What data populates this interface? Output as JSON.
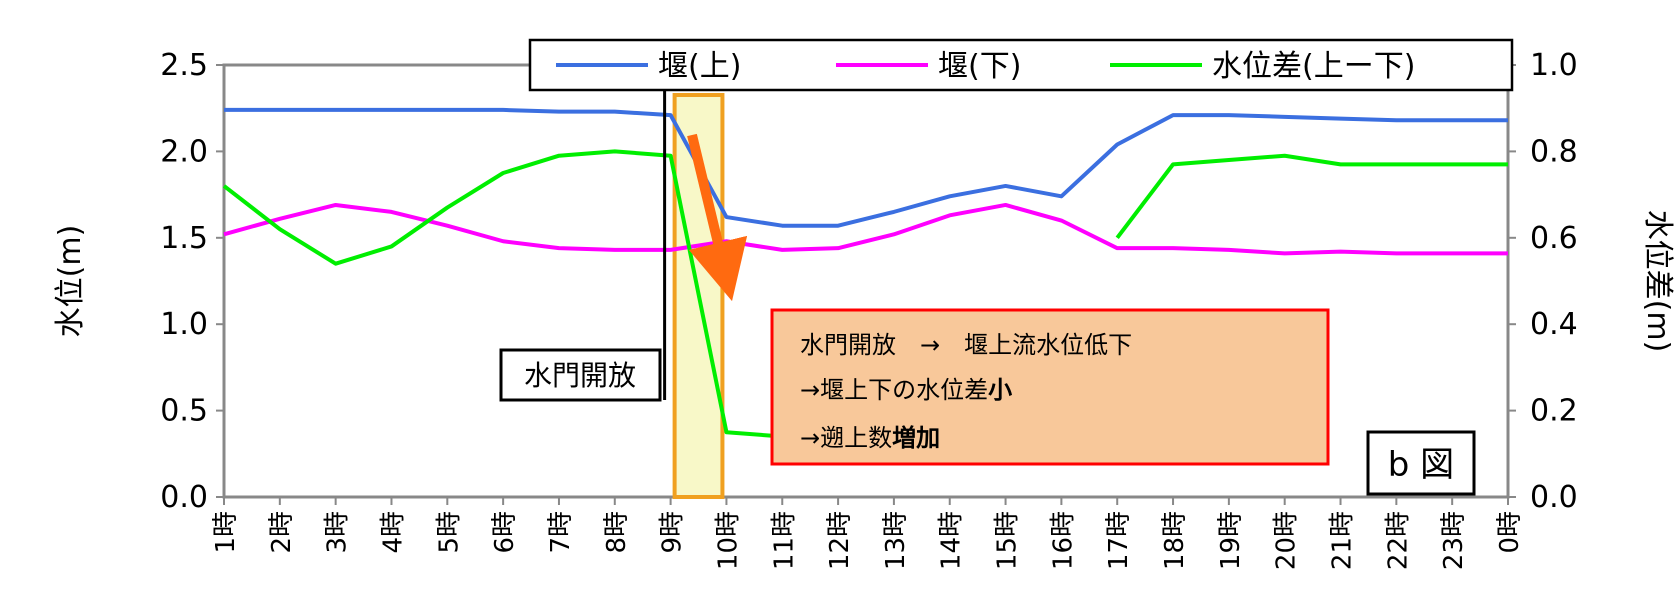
{
  "chart_data": {
    "type": "line",
    "categories": [
      "1時",
      "2時",
      "3時",
      "4時",
      "5時",
      "6時",
      "7時",
      "8時",
      "9時",
      "10時",
      "11時",
      "12時",
      "13時",
      "14時",
      "15時",
      "16時",
      "17時",
      "18時",
      "19時",
      "20時",
      "21時",
      "22時",
      "23時",
      "0時"
    ],
    "y_left": {
      "label": "水位(m)",
      "range": [
        0,
        2.5
      ],
      "ticks": [
        "0.0",
        "0.5",
        "1.0",
        "1.5",
        "2.0",
        "2.5"
      ]
    },
    "y_right": {
      "label": "水位差(m)",
      "range": [
        0,
        1.0
      ],
      "ticks": [
        "0.0",
        "0.2",
        "0.4",
        "0.6",
        "0.8",
        "1.0"
      ]
    },
    "grid": "dashed horizontal",
    "legend_position": "top",
    "series": [
      {
        "name": "堰(上)",
        "axis": "left",
        "color": "#3b6fe0",
        "values": [
          2.24,
          2.24,
          2.24,
          2.24,
          2.24,
          2.24,
          2.23,
          2.23,
          2.21,
          1.62,
          1.57,
          1.57,
          1.65,
          1.74,
          1.8,
          1.74,
          2.04,
          2.21,
          2.21,
          2.2,
          2.19,
          2.18,
          2.18,
          2.18
        ]
      },
      {
        "name": "堰(下)",
        "axis": "left",
        "color": "#ff00ff",
        "values": [
          1.52,
          1.61,
          1.69,
          1.65,
          1.57,
          1.48,
          1.44,
          1.43,
          1.43,
          1.48,
          1.43,
          1.44,
          1.52,
          1.63,
          1.69,
          1.6,
          1.44,
          1.44,
          1.43,
          1.41,
          1.42,
          1.41,
          1.41,
          1.41
        ]
      },
      {
        "name": "水位差(上ー下)",
        "axis": "right",
        "color": "#00ee00",
        "values": [
          0.72,
          0.62,
          0.54,
          0.58,
          0.67,
          0.75,
          0.79,
          0.8,
          0.79,
          0.15,
          0.14,
          null,
          null,
          null,
          null,
          null,
          0.6,
          0.77,
          0.78,
          0.79,
          0.77,
          0.77,
          0.77,
          0.77
        ]
      }
    ],
    "annotations": {
      "event_label": "水門開放",
      "callout_lines": [
        "水門開放　→　堰上流水位低下",
        "→堰上下の水位差小",
        "→遡上数増加"
      ],
      "callout_bold": [
        "",
        "小",
        "増加"
      ],
      "panel_label": "b 図"
    },
    "colors": {
      "plot_bg": "#ffffff",
      "highlight_fill": "#f8f8c8",
      "highlight_border": "#f0a020",
      "arrow": "#ff6a10",
      "callout_fill": "#f8c89a",
      "callout_border": "#ff0000"
    }
  }
}
